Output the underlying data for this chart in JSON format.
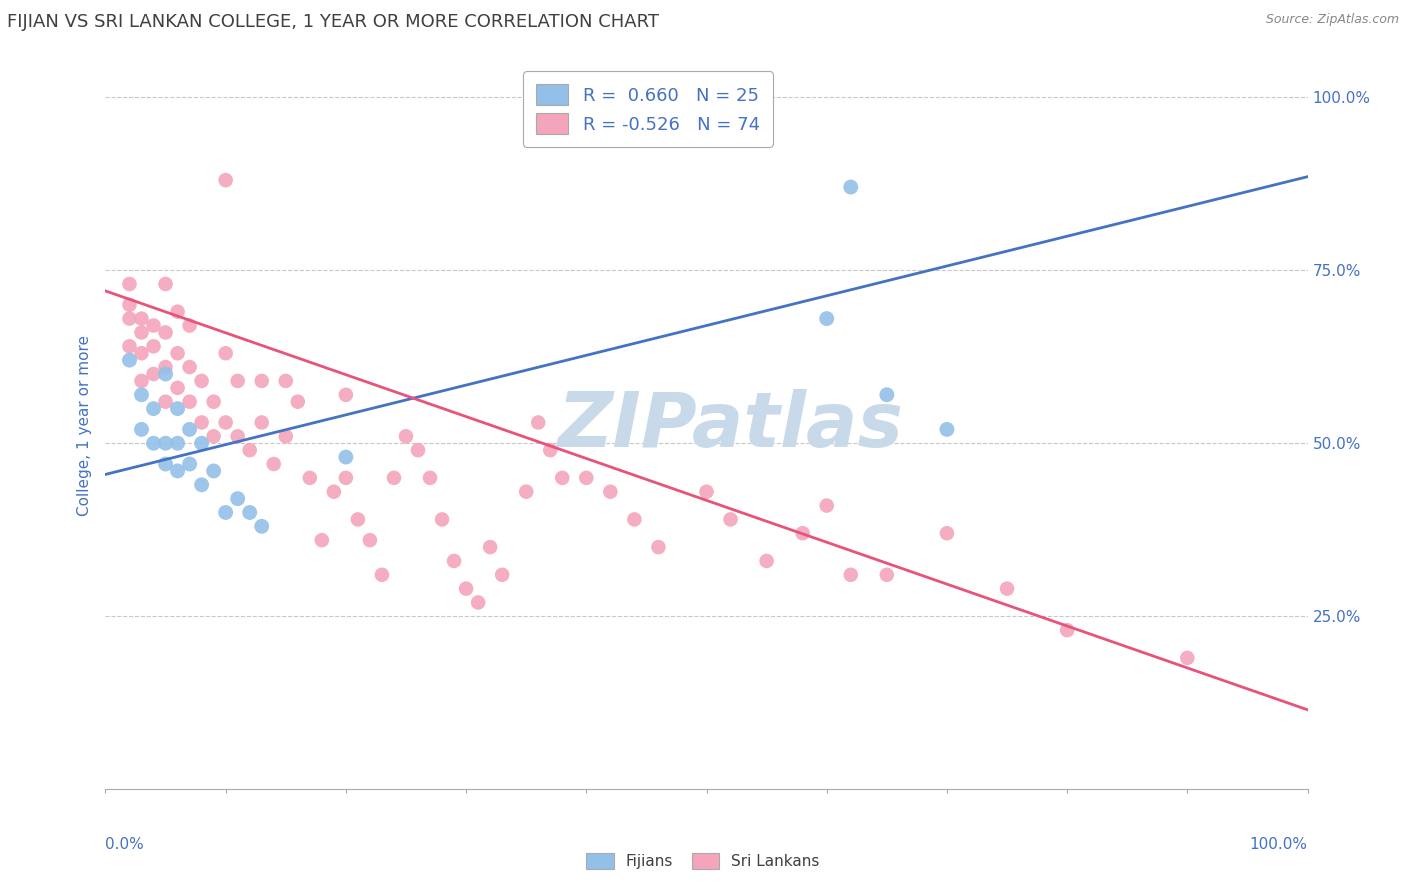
{
  "title": "FIJIAN VS SRI LANKAN COLLEGE, 1 YEAR OR MORE CORRELATION CHART",
  "source_text": "Source: ZipAtlas.com",
  "ylabel": "College, 1 year or more",
  "xlim": [
    0.0,
    1.0
  ],
  "ylim": [
    0.0,
    1.05
  ],
  "right_yticks": [
    0.25,
    0.5,
    0.75,
    1.0
  ],
  "right_yticklabels": [
    "25.0%",
    "50.0%",
    "75.0%",
    "100.0%"
  ],
  "x_left_label": "0.0%",
  "x_right_label": "100.0%",
  "fijian_color": "#92c0e8",
  "srilankan_color": "#f4a5bb",
  "fijian_line_color": "#4472c4",
  "srilankan_line_color": "#e8537a",
  "legend_line1": "R =  0.660   N = 25",
  "legend_line2": "R = -0.526   N = 74",
  "watermark": "ZIPatlas",
  "watermark_color": "#c8daea",
  "grid_color": "#c8c8c8",
  "background_color": "#ffffff",
  "title_fontsize": 13,
  "label_color": "#4472c4",
  "tick_color": "#4472c4",
  "fijian_points": [
    [
      0.02,
      0.62
    ],
    [
      0.03,
      0.57
    ],
    [
      0.03,
      0.52
    ],
    [
      0.04,
      0.55
    ],
    [
      0.04,
      0.5
    ],
    [
      0.05,
      0.6
    ],
    [
      0.05,
      0.5
    ],
    [
      0.05,
      0.47
    ],
    [
      0.06,
      0.55
    ],
    [
      0.06,
      0.5
    ],
    [
      0.06,
      0.46
    ],
    [
      0.07,
      0.52
    ],
    [
      0.07,
      0.47
    ],
    [
      0.08,
      0.5
    ],
    [
      0.08,
      0.44
    ],
    [
      0.09,
      0.46
    ],
    [
      0.1,
      0.4
    ],
    [
      0.11,
      0.42
    ],
    [
      0.12,
      0.4
    ],
    [
      0.13,
      0.38
    ],
    [
      0.2,
      0.48
    ],
    [
      0.6,
      0.68
    ],
    [
      0.62,
      0.87
    ],
    [
      0.65,
      0.57
    ],
    [
      0.7,
      0.52
    ]
  ],
  "srilankan_points": [
    [
      0.02,
      0.64
    ],
    [
      0.02,
      0.68
    ],
    [
      0.02,
      0.7
    ],
    [
      0.02,
      0.73
    ],
    [
      0.03,
      0.66
    ],
    [
      0.03,
      0.68
    ],
    [
      0.03,
      0.63
    ],
    [
      0.03,
      0.59
    ],
    [
      0.04,
      0.67
    ],
    [
      0.04,
      0.64
    ],
    [
      0.04,
      0.6
    ],
    [
      0.05,
      0.73
    ],
    [
      0.05,
      0.66
    ],
    [
      0.05,
      0.61
    ],
    [
      0.05,
      0.56
    ],
    [
      0.06,
      0.69
    ],
    [
      0.06,
      0.63
    ],
    [
      0.06,
      0.58
    ],
    [
      0.07,
      0.67
    ],
    [
      0.07,
      0.61
    ],
    [
      0.07,
      0.56
    ],
    [
      0.08,
      0.59
    ],
    [
      0.08,
      0.53
    ],
    [
      0.09,
      0.56
    ],
    [
      0.09,
      0.51
    ],
    [
      0.1,
      0.88
    ],
    [
      0.1,
      0.63
    ],
    [
      0.1,
      0.53
    ],
    [
      0.11,
      0.59
    ],
    [
      0.11,
      0.51
    ],
    [
      0.12,
      0.49
    ],
    [
      0.13,
      0.59
    ],
    [
      0.13,
      0.53
    ],
    [
      0.14,
      0.47
    ],
    [
      0.15,
      0.59
    ],
    [
      0.15,
      0.51
    ],
    [
      0.16,
      0.56
    ],
    [
      0.17,
      0.45
    ],
    [
      0.18,
      0.36
    ],
    [
      0.19,
      0.43
    ],
    [
      0.2,
      0.57
    ],
    [
      0.2,
      0.45
    ],
    [
      0.21,
      0.39
    ],
    [
      0.22,
      0.36
    ],
    [
      0.23,
      0.31
    ],
    [
      0.24,
      0.45
    ],
    [
      0.25,
      0.51
    ],
    [
      0.26,
      0.49
    ],
    [
      0.27,
      0.45
    ],
    [
      0.28,
      0.39
    ],
    [
      0.29,
      0.33
    ],
    [
      0.3,
      0.29
    ],
    [
      0.31,
      0.27
    ],
    [
      0.32,
      0.35
    ],
    [
      0.33,
      0.31
    ],
    [
      0.35,
      0.43
    ],
    [
      0.36,
      0.53
    ],
    [
      0.37,
      0.49
    ],
    [
      0.38,
      0.45
    ],
    [
      0.4,
      0.45
    ],
    [
      0.42,
      0.43
    ],
    [
      0.44,
      0.39
    ],
    [
      0.46,
      0.35
    ],
    [
      0.5,
      0.43
    ],
    [
      0.52,
      0.39
    ],
    [
      0.55,
      0.33
    ],
    [
      0.58,
      0.37
    ],
    [
      0.6,
      0.41
    ],
    [
      0.62,
      0.31
    ],
    [
      0.65,
      0.31
    ],
    [
      0.7,
      0.37
    ],
    [
      0.75,
      0.29
    ],
    [
      0.8,
      0.23
    ],
    [
      0.9,
      0.19
    ]
  ],
  "fijian_line": [
    [
      0.0,
      0.455
    ],
    [
      1.0,
      0.885
    ]
  ],
  "srilankan_line": [
    [
      0.0,
      0.72
    ],
    [
      1.0,
      0.115
    ]
  ]
}
